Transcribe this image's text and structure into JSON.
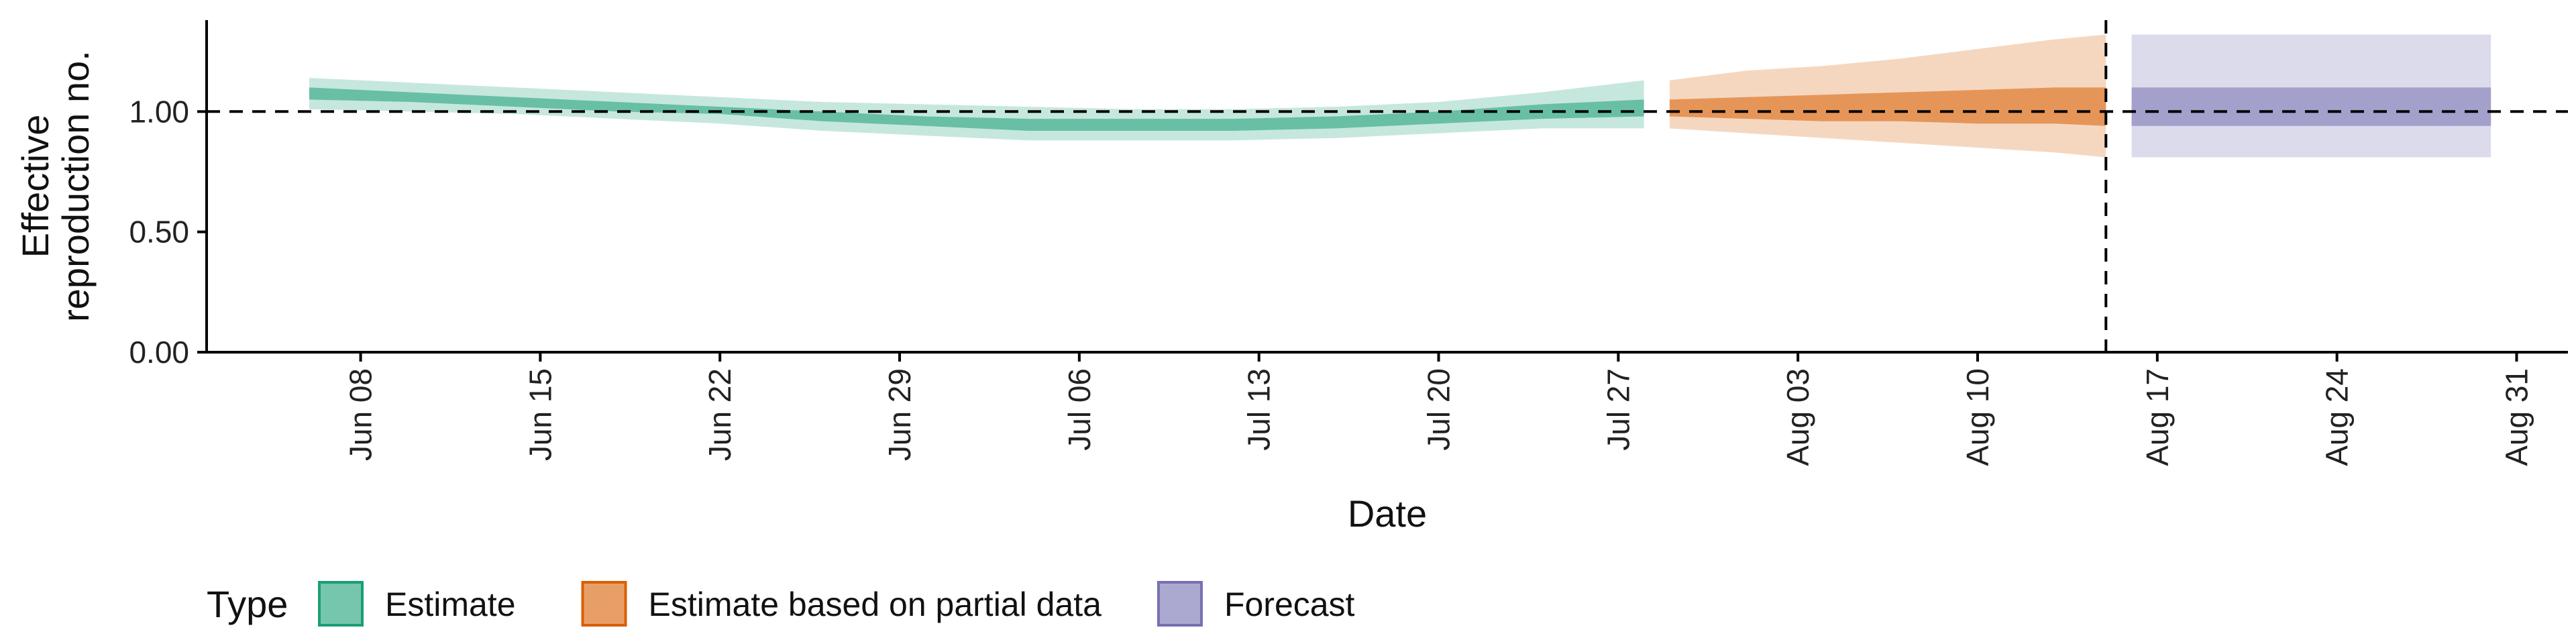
{
  "chart_data": {
    "type": "area",
    "xlabel": "Date",
    "ylabel_lines": [
      "Effective",
      "reproduction no."
    ],
    "ylim": [
      0,
      1.38
    ],
    "yticks": [
      {
        "value": 0.0,
        "label": "0.00"
      },
      {
        "value": 0.5,
        "label": "0.50"
      },
      {
        "value": 1.0,
        "label": "1.00"
      }
    ],
    "xlim": [
      "2020-06-02",
      "2020-09-02"
    ],
    "xticks": [
      {
        "date": "2020-06-08",
        "label": "Jun 08"
      },
      {
        "date": "2020-06-15",
        "label": "Jun 15"
      },
      {
        "date": "2020-06-22",
        "label": "Jun 22"
      },
      {
        "date": "2020-06-29",
        "label": "Jun 29"
      },
      {
        "date": "2020-07-06",
        "label": "Jul 06"
      },
      {
        "date": "2020-07-13",
        "label": "Jul 13"
      },
      {
        "date": "2020-07-20",
        "label": "Jul 20"
      },
      {
        "date": "2020-07-27",
        "label": "Jul 27"
      },
      {
        "date": "2020-08-03",
        "label": "Aug 03"
      },
      {
        "date": "2020-08-10",
        "label": "Aug 10"
      },
      {
        "date": "2020-08-17",
        "label": "Aug 17"
      },
      {
        "date": "2020-08-24",
        "label": "Aug 24"
      },
      {
        "date": "2020-08-31",
        "label": "Aug 31"
      }
    ],
    "reference_hline": 1.0,
    "reference_vline": "2020-08-15",
    "legend": {
      "title": "Type",
      "position": "bottom"
    },
    "series": [
      {
        "name": "Estimate",
        "color": "#1b9e77",
        "points": [
          {
            "date": "2020-06-06",
            "outer": [
              1.01,
              1.14
            ],
            "inner": [
              1.05,
              1.1
            ]
          },
          {
            "date": "2020-06-10",
            "outer": [
              1.0,
              1.12
            ],
            "inner": [
              1.04,
              1.08
            ]
          },
          {
            "date": "2020-06-14",
            "outer": [
              0.99,
              1.1
            ],
            "inner": [
              1.02,
              1.06
            ]
          },
          {
            "date": "2020-06-18",
            "outer": [
              0.97,
              1.08
            ],
            "inner": [
              1.0,
              1.04
            ]
          },
          {
            "date": "2020-06-22",
            "outer": [
              0.95,
              1.06
            ],
            "inner": [
              0.99,
              1.02
            ]
          },
          {
            "date": "2020-06-26",
            "outer": [
              0.92,
              1.04
            ],
            "inner": [
              0.96,
              1.0
            ]
          },
          {
            "date": "2020-06-30",
            "outer": [
              0.9,
              1.03
            ],
            "inner": [
              0.94,
              0.98
            ]
          },
          {
            "date": "2020-07-04",
            "outer": [
              0.88,
              1.02
            ],
            "inner": [
              0.92,
              0.97
            ]
          },
          {
            "date": "2020-07-08",
            "outer": [
              0.88,
              1.01
            ],
            "inner": [
              0.92,
              0.97
            ]
          },
          {
            "date": "2020-07-12",
            "outer": [
              0.88,
              1.01
            ],
            "inner": [
              0.92,
              0.97
            ]
          },
          {
            "date": "2020-07-16",
            "outer": [
              0.89,
              1.02
            ],
            "inner": [
              0.93,
              0.98
            ]
          },
          {
            "date": "2020-07-20",
            "outer": [
              0.91,
              1.04
            ],
            "inner": [
              0.95,
              1.0
            ]
          },
          {
            "date": "2020-07-24",
            "outer": [
              0.93,
              1.08
            ],
            "inner": [
              0.97,
              1.03
            ]
          },
          {
            "date": "2020-07-28",
            "outer": [
              0.93,
              1.13
            ],
            "inner": [
              0.98,
              1.05
            ]
          }
        ]
      },
      {
        "name": "Estimate based on partial data",
        "color": "#d95f02",
        "points": [
          {
            "date": "2020-07-29",
            "outer": [
              0.93,
              1.13
            ],
            "inner": [
              0.98,
              1.05
            ]
          },
          {
            "date": "2020-08-01",
            "outer": [
              0.91,
              1.17
            ],
            "inner": [
              0.97,
              1.06
            ]
          },
          {
            "date": "2020-08-04",
            "outer": [
              0.89,
              1.19
            ],
            "inner": [
              0.96,
              1.07
            ]
          },
          {
            "date": "2020-08-07",
            "outer": [
              0.87,
              1.22
            ],
            "inner": [
              0.96,
              1.08
            ]
          },
          {
            "date": "2020-08-10",
            "outer": [
              0.85,
              1.26
            ],
            "inner": [
              0.95,
              1.09
            ]
          },
          {
            "date": "2020-08-13",
            "outer": [
              0.83,
              1.3
            ],
            "inner": [
              0.95,
              1.1
            ]
          },
          {
            "date": "2020-08-15",
            "outer": [
              0.81,
              1.32
            ],
            "inner": [
              0.94,
              1.1
            ]
          }
        ]
      },
      {
        "name": "Forecast",
        "color": "#7570b3",
        "points": [
          {
            "date": "2020-08-16",
            "outer": [
              0.81,
              1.32
            ],
            "inner": [
              0.94,
              1.1
            ]
          },
          {
            "date": "2020-08-30",
            "outer": [
              0.81,
              1.32
            ],
            "inner": [
              0.94,
              1.1
            ]
          }
        ]
      }
    ]
  }
}
